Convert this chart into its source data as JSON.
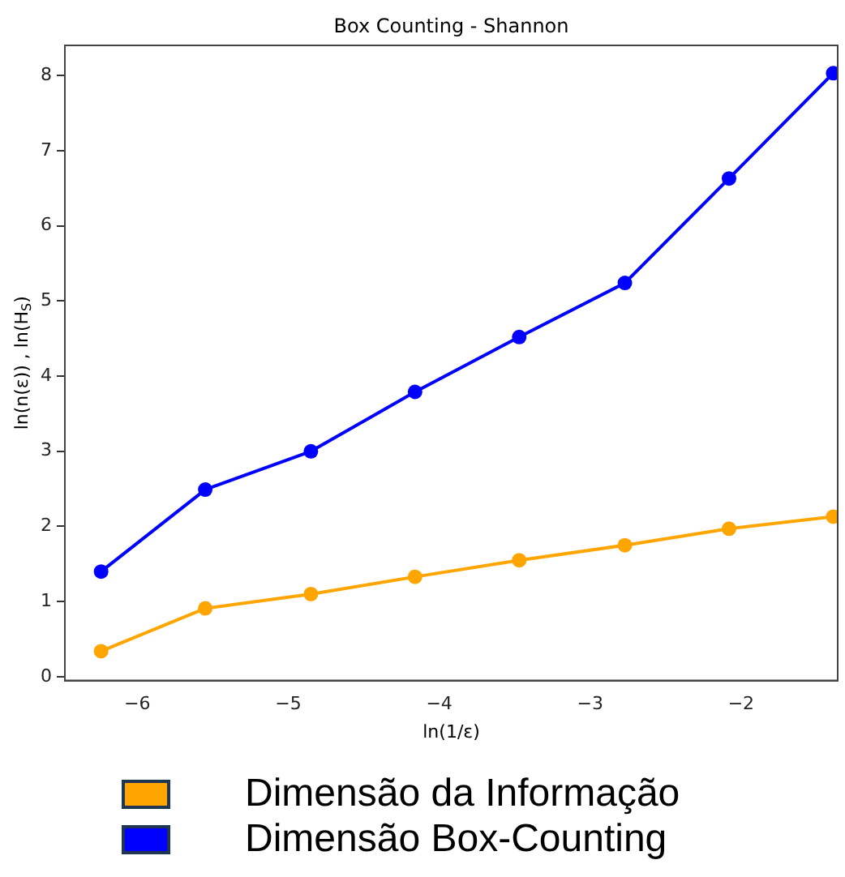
{
  "chart_data": {
    "type": "line",
    "title": "Box Counting - Shannon",
    "xlabel": "ln(1/ε)",
    "ylabel": "ln(n(ε)) , ln(H$_{S}$)",
    "x": [
      -6.24,
      -5.55,
      -4.85,
      -4.16,
      -3.47,
      -2.77,
      -2.08,
      -1.39
    ],
    "series": [
      {
        "name": "Dimensão da Informação",
        "color": "#ffa500",
        "values": [
          0.34,
          0.91,
          1.1,
          1.33,
          1.55,
          1.75,
          1.97,
          2.13
        ]
      },
      {
        "name": "Dimensão Box-Counting",
        "color": "#0000ff",
        "values": [
          1.4,
          2.49,
          3.0,
          3.79,
          4.52,
          5.24,
          6.63,
          8.03
        ]
      }
    ],
    "xlim": [
      -6.48,
      -1.36
    ],
    "ylim": [
      -0.05,
      8.4
    ],
    "xticks": [
      {
        "value": -6,
        "label": "−6"
      },
      {
        "value": -5,
        "label": "−5"
      },
      {
        "value": -4,
        "label": "−4"
      },
      {
        "value": -3,
        "label": "−3"
      },
      {
        "value": -2,
        "label": "−2"
      }
    ],
    "yticks": [
      0,
      1,
      2,
      3,
      4,
      5,
      6,
      7,
      8
    ],
    "marker": "circle",
    "line_style": "solid",
    "grid": false,
    "legend": "bottom"
  }
}
